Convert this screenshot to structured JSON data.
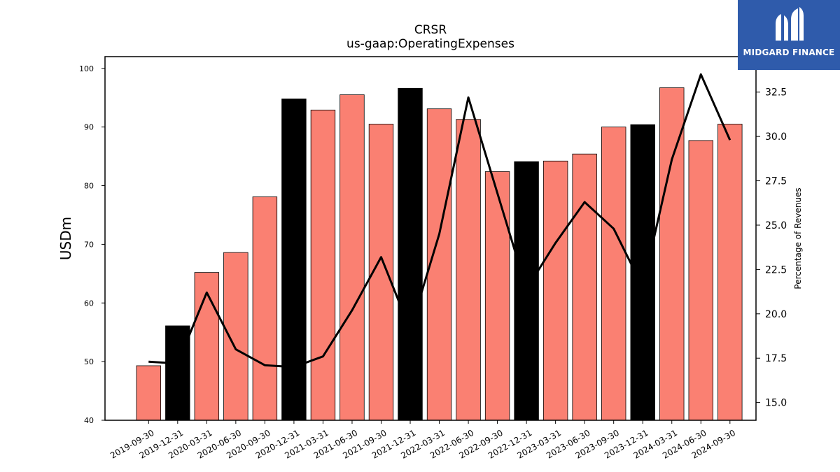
{
  "logo": {
    "text": "MIDGARD FINANCE"
  },
  "chart_data": {
    "type": "bar",
    "title": "CRSR",
    "subtitle": "us-gaap:OperatingExpenses",
    "ylabel": "USDm",
    "y2label": "Percentage of Revenues",
    "ylim": [
      40,
      102
    ],
    "y2lim": [
      14,
      34.5
    ],
    "yticks": [
      40,
      50,
      60,
      70,
      80,
      90,
      100
    ],
    "y2ticks": [
      15.0,
      17.5,
      20.0,
      22.5,
      25.0,
      27.5,
      30.0,
      32.5
    ],
    "categories": [
      "2019-09-30",
      "2019-12-31",
      "2020-03-31",
      "2020-06-30",
      "2020-09-30",
      "2020-12-31",
      "2021-03-31",
      "2021-06-30",
      "2021-09-30",
      "2021-12-31",
      "2022-03-31",
      "2022-06-30",
      "2022-09-30",
      "2022-12-31",
      "2023-03-31",
      "2023-06-30",
      "2023-09-30",
      "2023-12-31",
      "2024-03-31",
      "2024-06-30",
      "2024-09-30"
    ],
    "values": [
      49.3,
      56.1,
      65.2,
      68.6,
      78.1,
      94.8,
      92.9,
      95.5,
      90.5,
      96.6,
      93.1,
      91.3,
      82.4,
      84.1,
      84.2,
      85.4,
      90.0,
      90.4,
      96.7,
      87.7,
      90.5
    ],
    "bar_highlight": [
      false,
      true,
      false,
      false,
      false,
      true,
      false,
      false,
      false,
      true,
      false,
      false,
      false,
      true,
      false,
      false,
      false,
      true,
      false,
      false,
      false
    ],
    "percent_of_revenues": [
      17.3,
      17.2,
      21.2,
      18.0,
      17.1,
      17.0,
      17.6,
      20.2,
      23.2,
      19.1,
      24.5,
      32.2,
      26.8,
      21.4,
      24.0,
      26.3,
      24.8,
      21.5,
      28.7,
      33.5,
      29.8
    ],
    "colors": {
      "bar": "#fa8072",
      "bar_highlight": "#000000",
      "line": "#000000"
    },
    "grid": false
  }
}
